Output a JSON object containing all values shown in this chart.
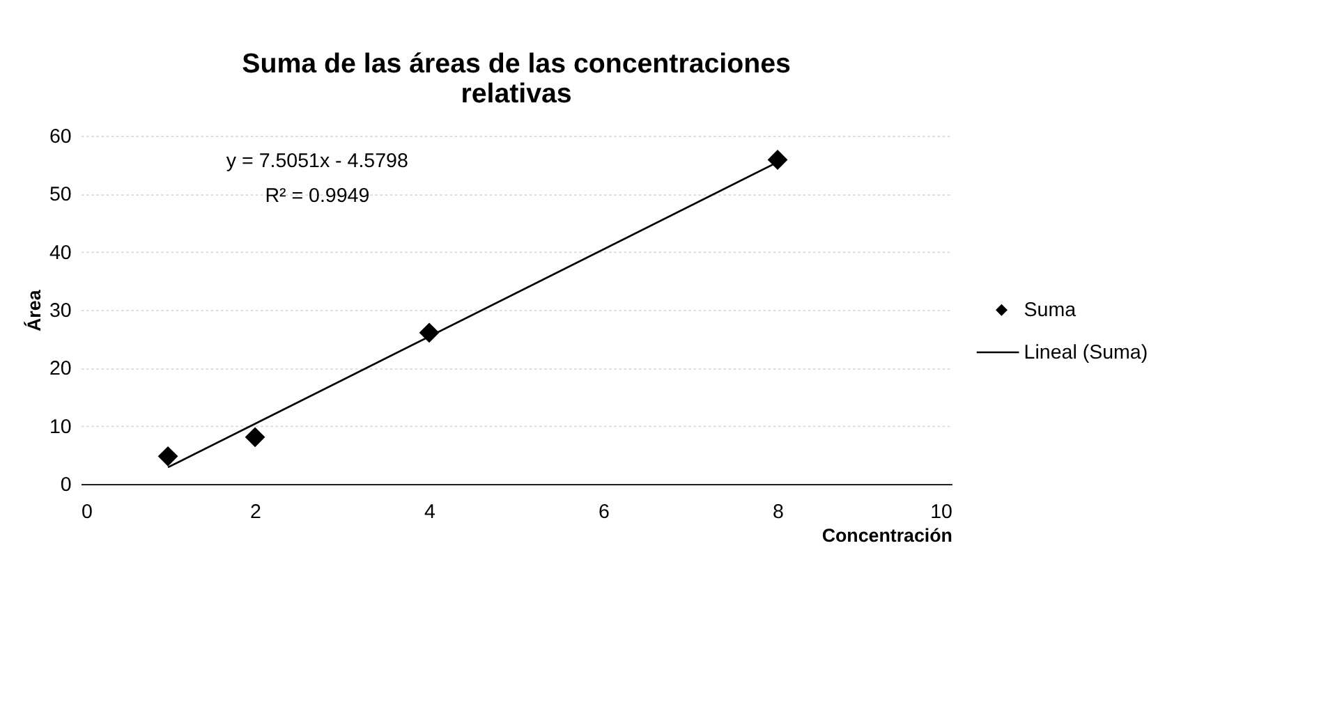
{
  "chart_data": {
    "type": "scatter",
    "title": "Suma de las áreas de las concentraciones relativas",
    "xlabel": "Concentración",
    "ylabel": "Área",
    "x": [
      1,
      2,
      4,
      8
    ],
    "series": [
      {
        "name": "Suma",
        "color": "#000000",
        "values": [
          4.8,
          8.1,
          26.1,
          55.9
        ],
        "marker": "diamond"
      },
      {
        "name": "Lineal (Suma)",
        "type": "line",
        "color": "#000000",
        "x": [
          1,
          8
        ],
        "values": [
          2.9,
          55.5
        ],
        "line_style": "solid"
      }
    ],
    "annotations": [
      "y = 7.5051x - 4.5798",
      "R² = 0.9949"
    ],
    "xlim": [
      0,
      10
    ],
    "xticks": [
      0,
      2,
      4,
      6,
      8,
      10
    ],
    "ylim": [
      0,
      60
    ],
    "yticks": [
      0,
      10,
      20,
      30,
      40,
      50,
      60
    ],
    "grid": "y",
    "legend": "right"
  }
}
